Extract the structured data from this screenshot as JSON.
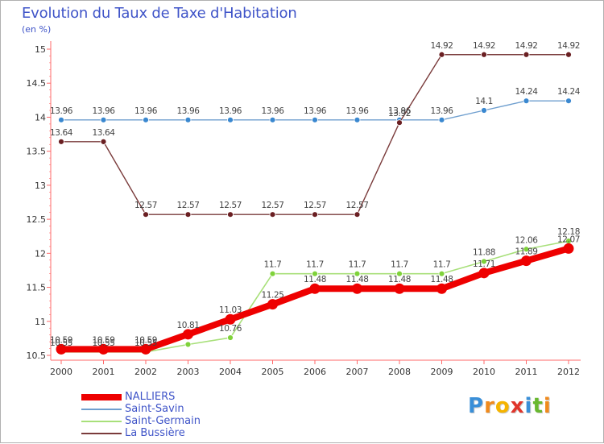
{
  "chart_data": {
    "type": "line",
    "title": "Evolution du Taux de Taxe d'Habitation",
    "subtitle": "(en %)",
    "x": [
      "2000",
      "2001",
      "2002",
      "2003",
      "2004",
      "2005",
      "2006",
      "2007",
      "2008",
      "2009",
      "2010",
      "2011",
      "2012"
    ],
    "ylim": [
      10.5,
      15
    ],
    "y_ticks": [
      "10.5",
      "11",
      "11.5",
      "12",
      "12.5",
      "13",
      "13.5",
      "14",
      "14.5",
      "15"
    ],
    "grid": false,
    "legend_position": "bottom-left",
    "series": [
      {
        "name": "Saint-Savin",
        "color": "#6f9fcf",
        "marker": "#3a88d0",
        "width": 1.4,
        "values": [
          13.96,
          13.96,
          13.96,
          13.96,
          13.96,
          13.96,
          13.96,
          13.96,
          13.96,
          13.96,
          14.1,
          14.24,
          14.24
        ],
        "labels": [
          "13.96",
          "13.96",
          "13.96",
          "13.96",
          "13.96",
          "13.96",
          "13.96",
          "13.96",
          "13.96",
          "13.96",
          "14.1",
          "14.24",
          "14.24"
        ]
      },
      {
        "name": "La Bussière",
        "color": "#7a3b3b",
        "marker": "#6a1f22",
        "width": 1.4,
        "values": [
          13.64,
          13.64,
          12.57,
          12.57,
          12.57,
          12.57,
          12.57,
          12.57,
          13.92,
          14.92,
          14.92,
          14.92,
          14.92
        ],
        "labels": [
          "13.64",
          "13.64",
          "12.57",
          "12.57",
          "12.57",
          "12.57",
          "12.57",
          "12.57",
          "13.92",
          "14.92",
          "14.92",
          "14.92",
          "14.92"
        ]
      },
      {
        "name": "Saint-Germain",
        "color": "#a8e07a",
        "marker": "#7fd23a",
        "width": 1.6,
        "values": [
          10.55,
          10.55,
          10.55,
          10.66,
          10.76,
          11.7,
          11.7,
          11.7,
          11.7,
          11.7,
          11.88,
          12.06,
          12.18
        ],
        "labels": [
          "10.55",
          "10.55",
          "10.55",
          "",
          "10.76",
          "11.7",
          "11.7",
          "11.7",
          "11.7",
          "11.7",
          "11.88",
          "12.06",
          "12.18"
        ]
      },
      {
        "name": "NALLIERS",
        "color": "#ee0000",
        "marker": "#ee0000",
        "width": 8,
        "values": [
          10.59,
          10.59,
          10.59,
          10.81,
          11.03,
          11.25,
          11.48,
          11.48,
          11.48,
          11.48,
          11.71,
          11.89,
          12.07
        ],
        "labels": [
          "10.59",
          "10.59",
          "10.59",
          "10.81",
          "11.03",
          "11.25",
          "11.48",
          "11.48",
          "11.48",
          "11.48",
          "11.71",
          "11.89",
          "12.07"
        ]
      }
    ]
  },
  "legend": [
    {
      "label": "NALLIERS",
      "color": "#ee0000",
      "width": 8
    },
    {
      "label": "Saint-Savin",
      "color": "#6f9fcf",
      "width": 2
    },
    {
      "label": "Saint-Germain",
      "color": "#a8e07a",
      "width": 2
    },
    {
      "label": "La Bussière",
      "color": "#7a3b3b",
      "width": 2
    }
  ],
  "logo": {
    "letters": [
      {
        "ch": "P",
        "color": "#3a8fd8"
      },
      {
        "ch": "r",
        "color": "#f08a1c"
      },
      {
        "ch": "o",
        "color": "#f5b400"
      },
      {
        "ch": "x",
        "color": "#e0352b"
      },
      {
        "ch": "i",
        "color": "#3a8fd8"
      },
      {
        "ch": "t",
        "color": "#68b82f"
      },
      {
        "ch": "i",
        "color": "#f08a1c"
      }
    ]
  }
}
